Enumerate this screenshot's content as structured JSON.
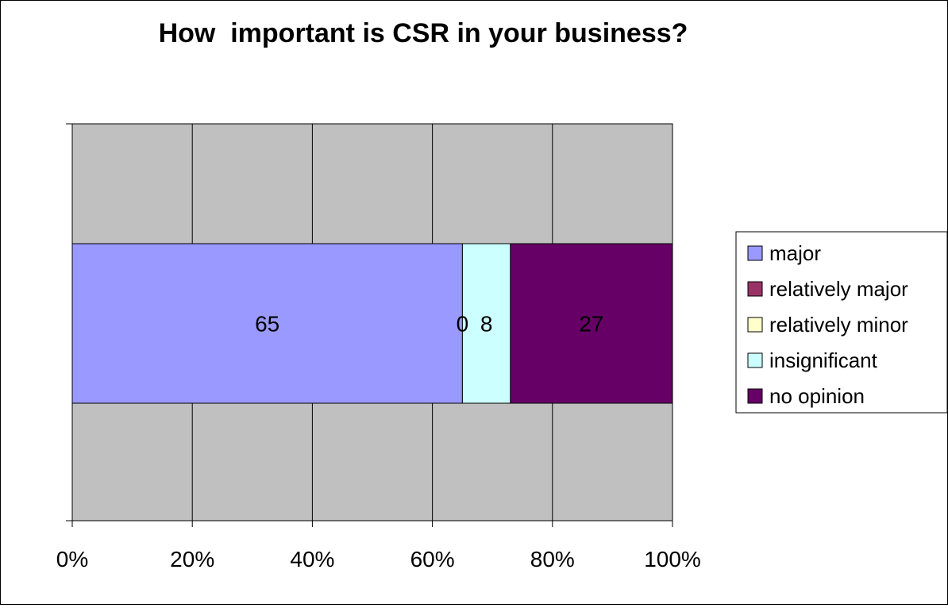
{
  "chart_data": {
    "type": "bar",
    "orientation": "horizontal",
    "stacking": "percent",
    "title": "How  important is CSR in your business?",
    "xlabel": "",
    "ylabel": "",
    "xlim": [
      0,
      100
    ],
    "x_ticks": [
      "0%",
      "20%",
      "40%",
      "60%",
      "80%",
      "100%"
    ],
    "grid": true,
    "legend_position": "right",
    "plot_background": "#c0c0c0",
    "series": [
      {
        "name": "major",
        "values": [
          65
        ],
        "color": "#9999ff",
        "label": "65"
      },
      {
        "name": "relatively major",
        "values": [
          0
        ],
        "color": "#993366",
        "label": ""
      },
      {
        "name": "relatively minor",
        "values": [
          0
        ],
        "color": "#ffffcc",
        "label": "0"
      },
      {
        "name": "insignificant",
        "values": [
          8
        ],
        "color": "#ccffff",
        "label": "8"
      },
      {
        "name": "no opinion",
        "values": [
          27
        ],
        "color": "#660066",
        "label": "27"
      }
    ]
  }
}
